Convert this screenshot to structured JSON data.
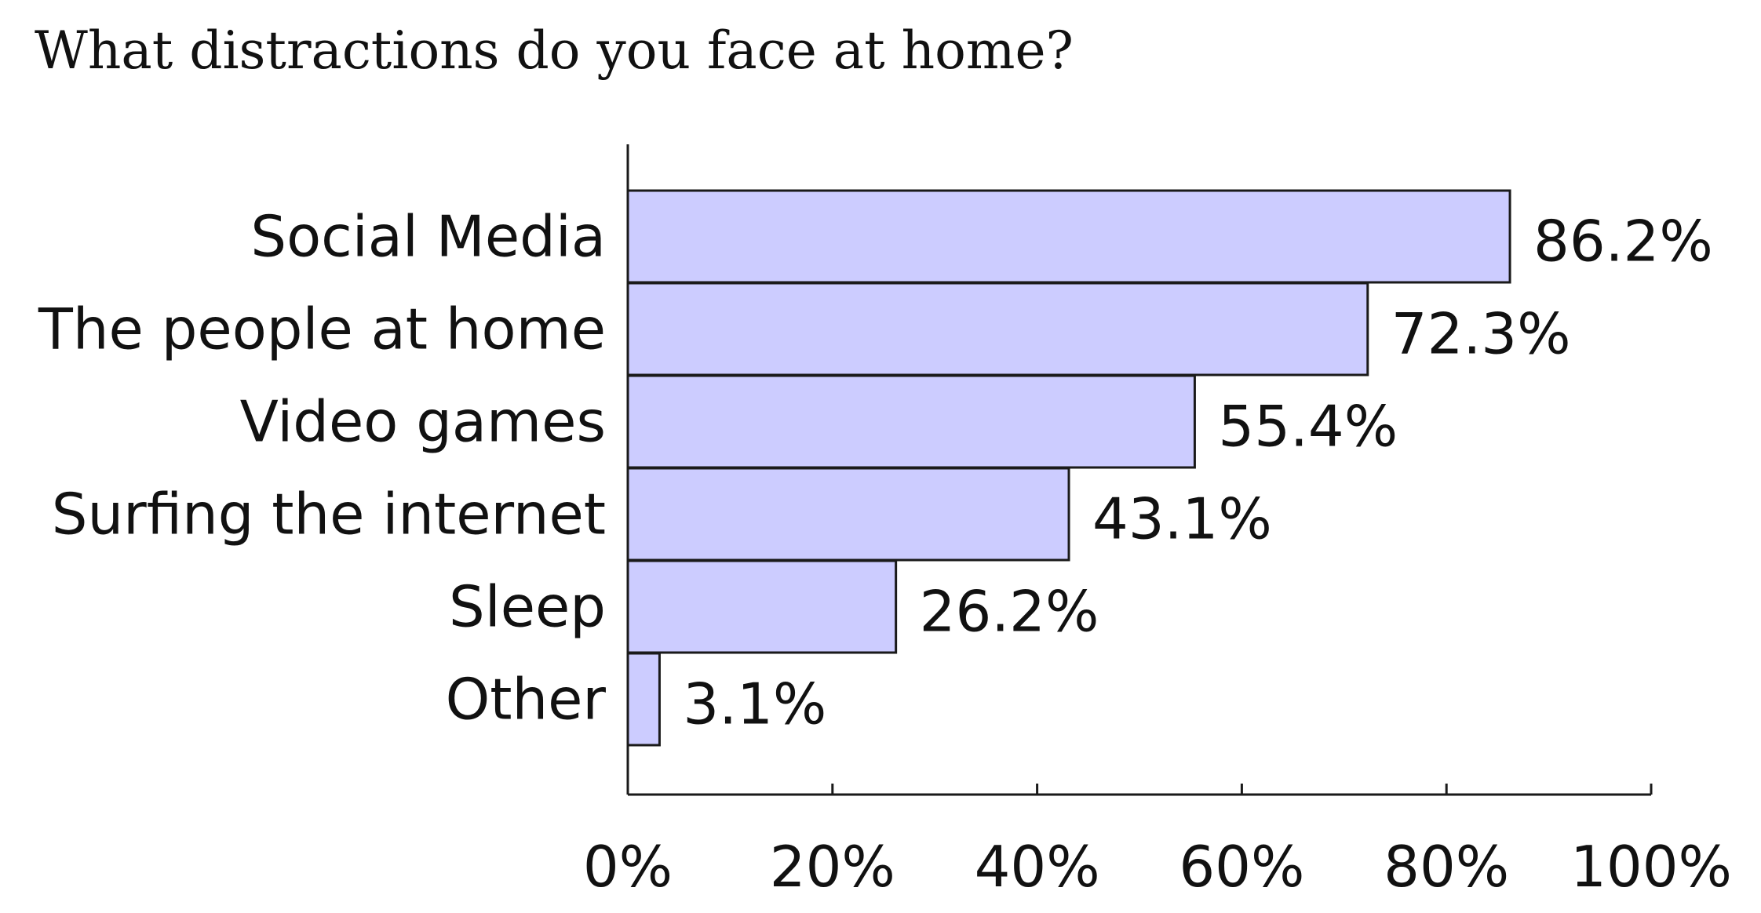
{
  "chart_data": {
    "type": "bar",
    "orientation": "horizontal",
    "title": "What distractions do you face at home?",
    "categories": [
      "Social Media",
      "The people at home",
      "Video games",
      "Surfing the internet",
      "Sleep",
      "Other"
    ],
    "values": [
      86.2,
      72.3,
      55.4,
      43.1,
      26.2,
      3.1
    ],
    "value_labels": [
      "86.2%",
      "72.3%",
      "55.4%",
      "43.1%",
      "26.2%",
      "3.1%"
    ],
    "xlim": [
      0,
      100
    ],
    "xticks": [
      0,
      20,
      40,
      60,
      80,
      100
    ],
    "xtick_labels": [
      "0%",
      "20%",
      "40%",
      "60%",
      "80%",
      "100%"
    ],
    "xlabel": "",
    "ylabel": "",
    "grid": false,
    "colors": {
      "bar_fill": "#ccccff",
      "bar_stroke": "#1a1a1a",
      "axis": "#1a1a1a",
      "text": "#111111"
    }
  }
}
